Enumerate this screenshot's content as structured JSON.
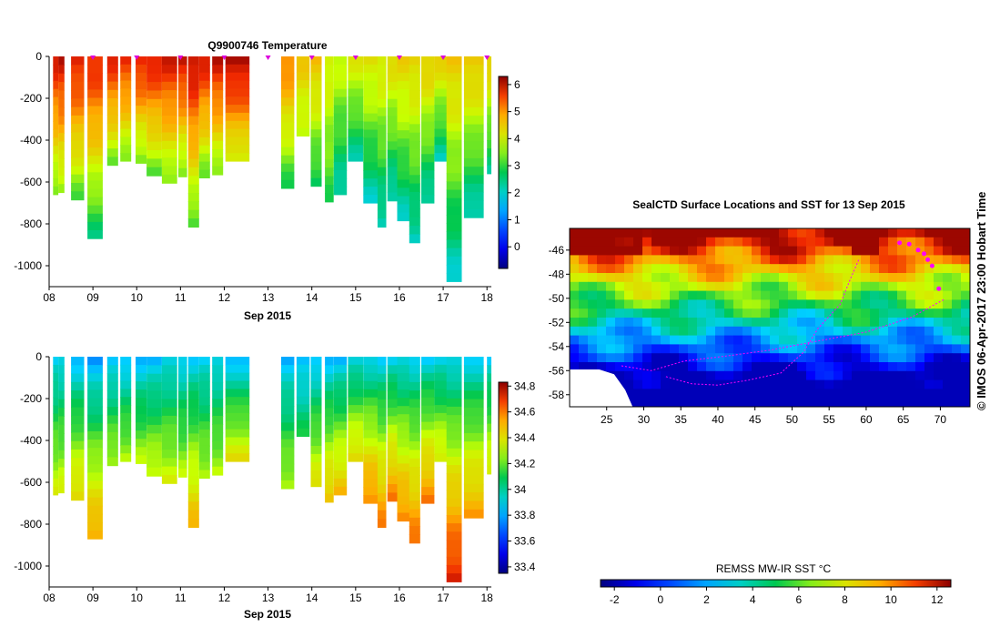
{
  "chart_data": [
    {
      "type": "heatmap",
      "id": "temperature",
      "title": "Q9900746  Temperature",
      "xlabel": "Sep 2015",
      "x_ticks": [
        "08",
        "09",
        "10",
        "11",
        "12",
        "13",
        "14",
        "15",
        "16",
        "17",
        "18"
      ],
      "xlim": [
        8,
        18.1
      ],
      "ylim": [
        -1100,
        0
      ],
      "y_ticks": [
        "0",
        "-200",
        "-400",
        "-600",
        "-800",
        "-1000"
      ],
      "y_tick_values": [
        0,
        -200,
        -400,
        -600,
        -800,
        -1000
      ],
      "colorbar": {
        "min": -0.8,
        "max": 6.3,
        "ticks": [
          "6",
          "5",
          "4",
          "3",
          "2",
          "1",
          "0"
        ],
        "tick_values": [
          6,
          5,
          4,
          3,
          2,
          1,
          0
        ]
      },
      "marker_days": [
        9.0,
        10.0,
        11.0,
        12.0,
        13.0,
        14.0,
        15.0,
        16.0,
        17.0,
        18.0
      ],
      "profiles": [
        {
          "t": 8.15,
          "w": 0.12,
          "depth": 660,
          "surface": 5.9,
          "bottom": 3.2
        },
        {
          "t": 8.28,
          "w": 0.14,
          "depth": 650,
          "surface": 6.0,
          "bottom": 3.4
        },
        {
          "t": 8.65,
          "w": 0.3,
          "depth": 685,
          "surface": 5.9,
          "bottom": 3.1
        },
        {
          "t": 9.05,
          "w": 0.35,
          "depth": 870,
          "surface": 5.8,
          "bottom": 2.5
        },
        {
          "t": 9.45,
          "w": 0.25,
          "depth": 520,
          "surface": 5.8,
          "bottom": 3.3
        },
        {
          "t": 9.75,
          "w": 0.25,
          "depth": 500,
          "surface": 5.7,
          "bottom": 3.3
        },
        {
          "t": 10.1,
          "w": 0.25,
          "depth": 510,
          "surface": 5.9,
          "bottom": 3.2
        },
        {
          "t": 10.4,
          "w": 0.35,
          "depth": 570,
          "surface": 5.9,
          "bottom": 3.2
        },
        {
          "t": 10.75,
          "w": 0.35,
          "depth": 605,
          "surface": 5.9,
          "bottom": 3.3
        },
        {
          "t": 11.05,
          "w": 0.2,
          "depth": 575,
          "surface": 6.0,
          "bottom": 3.2
        },
        {
          "t": 11.3,
          "w": 0.25,
          "depth": 815,
          "surface": 6.1,
          "bottom": 3.0
        },
        {
          "t": 11.55,
          "w": 0.25,
          "depth": 580,
          "surface": 5.9,
          "bottom": 3.2
        },
        {
          "t": 11.85,
          "w": 0.25,
          "depth": 565,
          "surface": 6.0,
          "bottom": 3.3
        },
        {
          "t": 12.3,
          "w": 0.55,
          "depth": 500,
          "surface": 6.2,
          "bottom": 3.8
        },
        {
          "t": 13.45,
          "w": 0.3,
          "depth": 630,
          "surface": 5.2,
          "bottom": 2.8
        },
        {
          "t": 13.8,
          "w": 0.3,
          "depth": 380,
          "surface": 4.5,
          "bottom": 3.6
        },
        {
          "t": 14.1,
          "w": 0.25,
          "depth": 620,
          "surface": 4.6,
          "bottom": 2.6
        },
        {
          "t": 14.4,
          "w": 0.2,
          "depth": 695,
          "surface": 4.1,
          "bottom": 2.9
        },
        {
          "t": 14.65,
          "w": 0.3,
          "depth": 660,
          "surface": 3.9,
          "bottom": 2.1
        },
        {
          "t": 15.0,
          "w": 0.35,
          "depth": 500,
          "surface": 4.1,
          "bottom": 2.2
        },
        {
          "t": 15.35,
          "w": 0.35,
          "depth": 700,
          "surface": 4.2,
          "bottom": 2.0
        },
        {
          "t": 15.6,
          "w": 0.2,
          "depth": 815,
          "surface": 4.2,
          "bottom": 2.0
        },
        {
          "t": 15.85,
          "w": 0.25,
          "depth": 690,
          "surface": 4.3,
          "bottom": 2.0
        },
        {
          "t": 16.1,
          "w": 0.3,
          "depth": 785,
          "surface": 4.4,
          "bottom": 2.0
        },
        {
          "t": 16.35,
          "w": 0.25,
          "depth": 890,
          "surface": 4.4,
          "bottom": 2.0
        },
        {
          "t": 16.65,
          "w": 0.3,
          "depth": 700,
          "surface": 4.5,
          "bottom": 2.1
        },
        {
          "t": 16.95,
          "w": 0.3,
          "depth": 500,
          "surface": 4.4,
          "bottom": 2.1
        },
        {
          "t": 17.25,
          "w": 0.35,
          "depth": 1075,
          "surface": 4.5,
          "bottom": 1.9
        },
        {
          "t": 17.7,
          "w": 0.45,
          "depth": 770,
          "surface": 4.6,
          "bottom": 2.0
        },
        {
          "t": 18.05,
          "w": 0.1,
          "depth": 560,
          "surface": 4.5,
          "bottom": 2.3
        }
      ]
    },
    {
      "type": "heatmap",
      "id": "salinity",
      "title": "",
      "xlabel": "Sep 2015",
      "x_ticks": [
        "08",
        "09",
        "10",
        "11",
        "12",
        "13",
        "14",
        "15",
        "16",
        "17",
        "18"
      ],
      "xlim": [
        8,
        18.1
      ],
      "ylim": [
        -1100,
        0
      ],
      "y_ticks": [
        "0",
        "-200",
        "-400",
        "-600",
        "-800",
        "-1000"
      ],
      "y_tick_values": [
        0,
        -200,
        -400,
        -600,
        -800,
        -1000
      ],
      "colorbar": {
        "min": 33.35,
        "max": 34.83,
        "ticks": [
          "34.8",
          "34.6",
          "34.4",
          "34.2",
          "34",
          "33.8",
          "33.6",
          "33.4"
        ],
        "tick_values": [
          34.8,
          34.6,
          34.4,
          34.2,
          34.0,
          33.8,
          33.6,
          33.4
        ]
      },
      "profiles": [
        {
          "t": 8.15,
          "w": 0.12,
          "depth": 660,
          "surface": 33.85,
          "bottom": 34.35
        },
        {
          "t": 8.28,
          "w": 0.14,
          "depth": 650,
          "surface": 33.85,
          "bottom": 34.35
        },
        {
          "t": 8.65,
          "w": 0.3,
          "depth": 685,
          "surface": 33.8,
          "bottom": 34.45
        },
        {
          "t": 9.05,
          "w": 0.35,
          "depth": 870,
          "surface": 33.75,
          "bottom": 34.55
        },
        {
          "t": 9.45,
          "w": 0.25,
          "depth": 520,
          "surface": 33.8,
          "bottom": 34.3
        },
        {
          "t": 9.75,
          "w": 0.25,
          "depth": 500,
          "surface": 33.8,
          "bottom": 34.3
        },
        {
          "t": 10.1,
          "w": 0.25,
          "depth": 510,
          "surface": 33.8,
          "bottom": 34.3
        },
        {
          "t": 10.4,
          "w": 0.35,
          "depth": 570,
          "surface": 33.8,
          "bottom": 34.35
        },
        {
          "t": 10.75,
          "w": 0.35,
          "depth": 605,
          "surface": 33.85,
          "bottom": 34.35
        },
        {
          "t": 11.05,
          "w": 0.2,
          "depth": 575,
          "surface": 33.85,
          "bottom": 34.3
        },
        {
          "t": 11.3,
          "w": 0.25,
          "depth": 815,
          "surface": 33.85,
          "bottom": 34.5
        },
        {
          "t": 11.55,
          "w": 0.25,
          "depth": 580,
          "surface": 33.85,
          "bottom": 34.3
        },
        {
          "t": 11.85,
          "w": 0.25,
          "depth": 565,
          "surface": 33.85,
          "bottom": 34.3
        },
        {
          "t": 12.3,
          "w": 0.55,
          "depth": 500,
          "surface": 33.8,
          "bottom": 34.4
        },
        {
          "t": 13.45,
          "w": 0.3,
          "depth": 630,
          "surface": 33.8,
          "bottom": 34.3
        },
        {
          "t": 13.8,
          "w": 0.3,
          "depth": 380,
          "surface": 33.8,
          "bottom": 34.1
        },
        {
          "t": 14.1,
          "w": 0.25,
          "depth": 620,
          "surface": 33.8,
          "bottom": 34.4
        },
        {
          "t": 14.4,
          "w": 0.2,
          "depth": 695,
          "surface": 33.8,
          "bottom": 34.5
        },
        {
          "t": 14.65,
          "w": 0.3,
          "depth": 660,
          "surface": 33.8,
          "bottom": 34.5
        },
        {
          "t": 15.0,
          "w": 0.35,
          "depth": 500,
          "surface": 33.85,
          "bottom": 34.45
        },
        {
          "t": 15.35,
          "w": 0.35,
          "depth": 700,
          "surface": 33.85,
          "bottom": 34.6
        },
        {
          "t": 15.6,
          "w": 0.2,
          "depth": 815,
          "surface": 33.85,
          "bottom": 34.6
        },
        {
          "t": 15.85,
          "w": 0.25,
          "depth": 690,
          "surface": 33.85,
          "bottom": 34.6
        },
        {
          "t": 16.1,
          "w": 0.3,
          "depth": 785,
          "surface": 33.85,
          "bottom": 34.6
        },
        {
          "t": 16.35,
          "w": 0.25,
          "depth": 890,
          "surface": 33.85,
          "bottom": 34.62
        },
        {
          "t": 16.65,
          "w": 0.3,
          "depth": 700,
          "surface": 33.85,
          "bottom": 34.6
        },
        {
          "t": 16.95,
          "w": 0.3,
          "depth": 500,
          "surface": 33.85,
          "bottom": 34.4
        },
        {
          "t": 17.25,
          "w": 0.35,
          "depth": 1075,
          "surface": 33.85,
          "bottom": 34.75
        },
        {
          "t": 17.7,
          "w": 0.45,
          "depth": 770,
          "surface": 33.85,
          "bottom": 34.55
        },
        {
          "t": 18.05,
          "w": 0.1,
          "depth": 560,
          "surface": 33.85,
          "bottom": 34.4
        }
      ]
    },
    {
      "type": "heatmap",
      "id": "sst-map",
      "title": "SealCTD Surface Locations and SST for 13 Sep 2015",
      "xlabel": "",
      "ylabel": "",
      "x_ticks": [
        "25",
        "30",
        "35",
        "40",
        "45",
        "50",
        "55",
        "60",
        "65",
        "70"
      ],
      "x_tick_values": [
        25,
        30,
        35,
        40,
        45,
        50,
        55,
        60,
        65,
        70
      ],
      "y_ticks": [
        "-46",
        "-48",
        "-50",
        "-52",
        "-54",
        "-56",
        "-58"
      ],
      "y_tick_values": [
        -46,
        -48,
        -50,
        -52,
        -54,
        -56,
        -58
      ],
      "xlim": [
        20,
        74
      ],
      "ylim": [
        -59,
        -44.2
      ],
      "colorbar": {
        "label": "REMSS MW-IR SST °C",
        "min": -2.6,
        "max": 12.6,
        "ticks": [
          "-2",
          "0",
          "2",
          "4",
          "6",
          "8",
          "10",
          "12"
        ],
        "tick_values": [
          -2,
          0,
          2,
          4,
          6,
          8,
          10,
          12
        ]
      },
      "track": [
        [
          33,
          -56.5
        ],
        [
          36.5,
          -57.1
        ],
        [
          40,
          -57.2
        ],
        [
          44,
          -56.8
        ],
        [
          48.5,
          -56.2
        ],
        [
          51.5,
          -54.5
        ],
        [
          53.5,
          -52.5
        ],
        [
          56.5,
          -50.5
        ],
        [
          57.8,
          -48.5
        ],
        [
          59,
          -46.8
        ]
      ],
      "track2": [
        [
          27,
          -55.6
        ],
        [
          31,
          -56
        ],
        [
          35.5,
          -55.2
        ],
        [
          41,
          -54.8
        ],
        [
          47,
          -54.3
        ],
        [
          53,
          -53.6
        ],
        [
          60,
          -52.8
        ],
        [
          66,
          -51.6
        ],
        [
          70.5,
          -50.1
        ]
      ],
      "surface_locations": [
        [
          64.5,
          -45.4
        ],
        [
          65.8,
          -45.5
        ],
        [
          67,
          -46
        ],
        [
          67.8,
          -46.3
        ],
        [
          68.3,
          -46.8
        ],
        [
          68.9,
          -47.3
        ],
        [
          69.8,
          -49.2
        ]
      ]
    }
  ],
  "footer_note": "© IMOS 06-Apr-2017 23:00 Hobart Time"
}
